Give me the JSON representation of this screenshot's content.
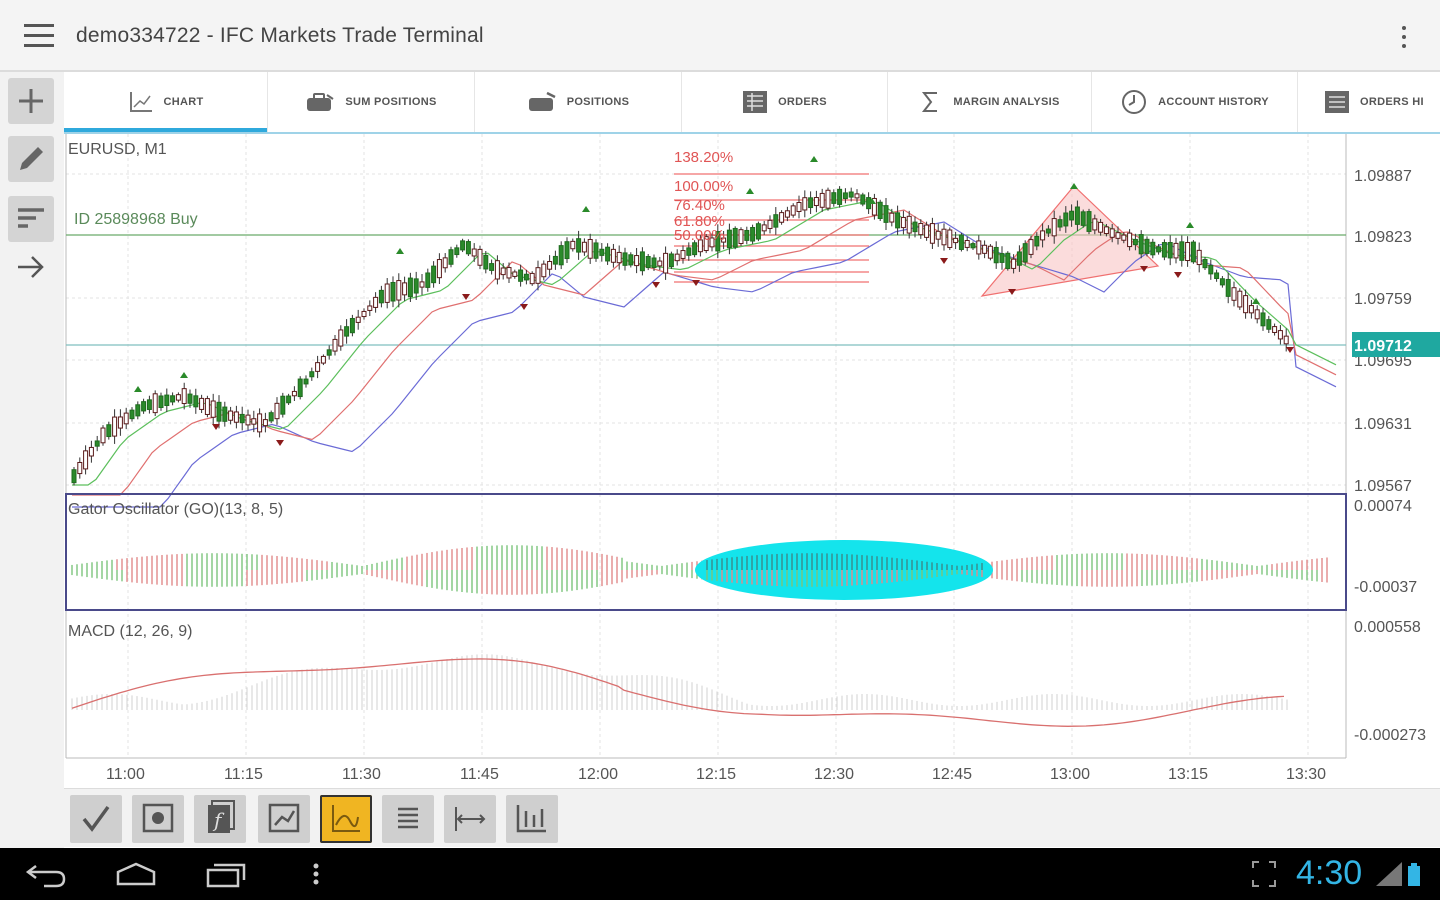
{
  "app": {
    "title": "demo334722 - IFC Markets Trade Terminal"
  },
  "tabs": [
    {
      "label": "CHART",
      "icon": "chart-line-icon",
      "active": true
    },
    {
      "label": "SUM POSITIONS",
      "icon": "briefcase-stack-icon"
    },
    {
      "label": "POSITIONS",
      "icon": "briefcase-icon"
    },
    {
      "label": "ORDERS",
      "icon": "list-table-icon"
    },
    {
      "label": "MARGIN ANALYSIS",
      "icon": "sigma-icon"
    },
    {
      "label": "ACCOUNT HISTORY",
      "icon": "history-clock-icon"
    },
    {
      "label": "ORDERS HI",
      "icon": "orders-history-icon"
    }
  ],
  "left_tools": [
    {
      "name": "add-tool",
      "icon": "plus-icon"
    },
    {
      "name": "draw-tool",
      "icon": "pencil-icon"
    },
    {
      "name": "sort-tool",
      "icon": "sort-lines-icon"
    },
    {
      "name": "next-tool",
      "icon": "arrow-right-icon"
    }
  ],
  "chart": {
    "symbol_label": "EURUSD, M1",
    "position_label": "ID 25898968 Buy",
    "fib_labels": [
      "138.20%",
      "100.00%",
      "76.40%",
      "61.80%",
      "50.00%"
    ],
    "price_ticks": [
      "1.09887",
      "1.09823",
      "1.09759",
      "1.09695",
      "1.09631",
      "1.09567"
    ],
    "current_price": "1.09712",
    "accent_color": "#1fa8a0",
    "time_ticks": [
      "11:00",
      "11:15",
      "11:30",
      "11:45",
      "12:00",
      "12:15",
      "12:30",
      "12:45",
      "13:00",
      "13:15",
      "13:30"
    ]
  },
  "gator": {
    "label": "Gator Oscillator (GO)(13, 8, 5)",
    "ticks": [
      "0.00074",
      "-0.00037"
    ],
    "highlight_color": "#14e4ec"
  },
  "macd": {
    "label": "MACD (12, 26, 9)",
    "ticks": [
      "0.000558",
      "-0.000273"
    ]
  },
  "bottom_tools": [
    {
      "name": "check-tool",
      "icon": "check-pen-icon"
    },
    {
      "name": "screenshot-tool",
      "icon": "image-icon"
    },
    {
      "name": "indicator-tool",
      "icon": "function-icon"
    },
    {
      "name": "chart-type-tool",
      "icon": "chart-box-icon"
    },
    {
      "name": "line-chart-tool",
      "icon": "line-chart-icon",
      "active": true
    },
    {
      "name": "list-tool",
      "icon": "hamburger-lines-icon"
    },
    {
      "name": "range-tool",
      "icon": "range-arrows-icon"
    },
    {
      "name": "bars-tool",
      "icon": "bars-icon"
    }
  ],
  "status": {
    "time": "4:30"
  }
}
